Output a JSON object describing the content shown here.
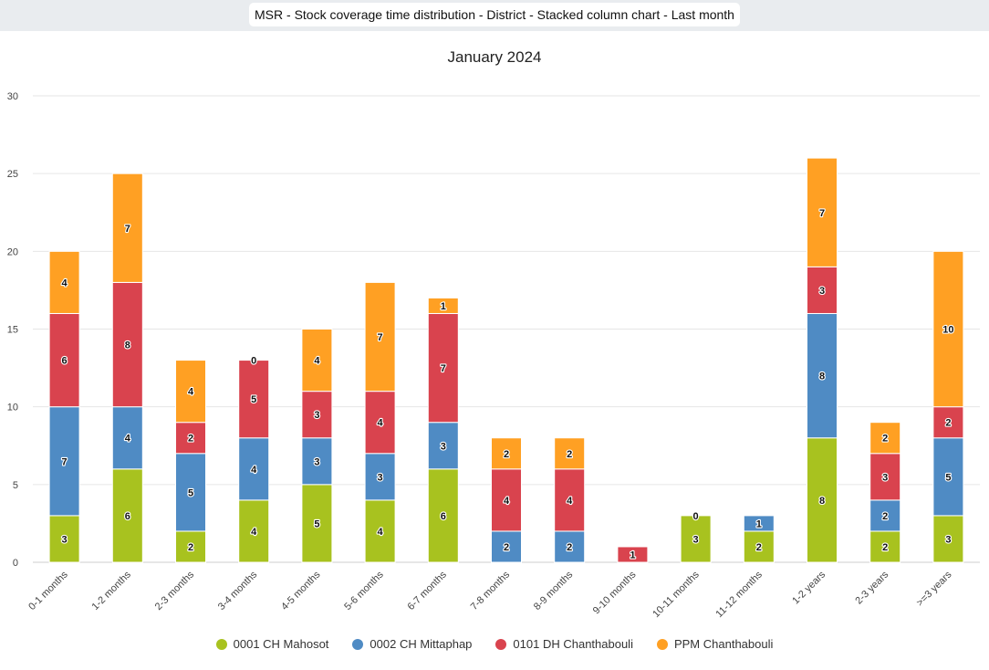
{
  "header": {
    "title": "MSR - Stock coverage time distribution - District - Stacked column chart - Last month"
  },
  "chart_data": {
    "type": "bar",
    "stacked": true,
    "title": "January 2024",
    "xlabel": "",
    "ylabel": "",
    "ylim": [
      0,
      30
    ],
    "yticks": [
      0,
      5,
      10,
      15,
      20,
      25,
      30
    ],
    "grid": true,
    "legend_position": "bottom",
    "categories": [
      "0-1 months",
      "1-2 months",
      "2-3 months",
      "3-4 months",
      "4-5 months",
      "5-6 months",
      "6-7 months",
      "7-8 months",
      "8-9 months",
      "9-10 months",
      "10-11 months",
      "11-12 months",
      "1-2 years",
      "2-3 years",
      ">=3 years"
    ],
    "series": [
      {
        "name": "0001 CH Mahosot",
        "color": "#a8c21f",
        "values": [
          3,
          6,
          2,
          4,
          5,
          4,
          6,
          null,
          null,
          null,
          3,
          2,
          8,
          2,
          3
        ]
      },
      {
        "name": "0002 CH Mittaphap",
        "color": "#4f8bc4",
        "values": [
          7,
          4,
          5,
          4,
          3,
          3,
          3,
          2,
          2,
          null,
          null,
          1,
          8,
          2,
          5
        ]
      },
      {
        "name": "0101 DH Chanthabouli",
        "color": "#d9434e",
        "values": [
          6,
          8,
          2,
          5,
          3,
          4,
          7,
          4,
          4,
          1,
          null,
          null,
          3,
          3,
          2
        ]
      },
      {
        "name": "PPM Chanthabouli",
        "color": "#ffa023",
        "values": [
          4,
          7,
          4,
          0,
          4,
          7,
          1,
          2,
          2,
          null,
          0,
          null,
          7,
          2,
          10
        ]
      }
    ]
  }
}
